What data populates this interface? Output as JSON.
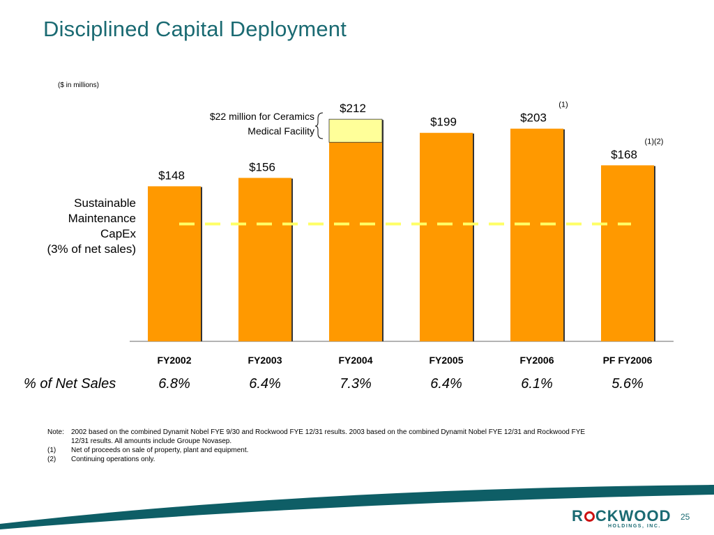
{
  "title": "Disciplined Capital Deployment",
  "units_note": "($ in millions)",
  "side_label": [
    "Sustainable",
    "Maintenance",
    "CapEx",
    "(3% of net sales)"
  ],
  "annotation": {
    "text_line1": "$22 million for Ceramics",
    "text_line2": "Medical Facility",
    "value": 22,
    "category": "FY2004"
  },
  "chart_data": {
    "type": "bar",
    "categories": [
      "FY2002",
      "FY2003",
      "FY2004",
      "FY2005",
      "FY2006",
      "PF FY2006"
    ],
    "values": [
      148,
      156,
      212,
      199,
      203,
      168
    ],
    "value_labels": [
      "$148",
      "$156",
      "$212",
      "$199",
      "$203",
      "$168"
    ],
    "footnote_marks": [
      "",
      "",
      "",
      "",
      "(1)",
      "(1)(2)"
    ],
    "stacked_segment": {
      "category": "FY2004",
      "base": 190,
      "top": 212,
      "color": "#ffff99"
    },
    "reference_line": {
      "label": "Sustainable Maintenance CapEx",
      "value": 112,
      "style": "dashed",
      "color": "#ffff66"
    },
    "ylim": [
      0,
      230
    ],
    "bar_color": "#ff9900",
    "grid": false
  },
  "row_label": "% of Net Sales",
  "pct_of_net_sales": [
    "6.8%",
    "6.4%",
    "7.3%",
    "6.4%",
    "6.1%",
    "5.6%"
  ],
  "notes": [
    {
      "key": "Note:",
      "text": "2002 based on the combined Dynamit Nobel FYE 9/30 and Rockwood FYE 12/31 results. 2003 based on the combined Dynamit Nobel FYE 12/31 and Rockwood FYE"
    },
    {
      "key": "",
      "text": "12/31 results. All amounts include Groupe Novasep."
    },
    {
      "key": "(1)",
      "text": "Net of proceeds on sale of property, plant and equipment."
    },
    {
      "key": "(2)",
      "text": "Continuing operations only."
    }
  ],
  "logo": {
    "name": "ROCKWOOD",
    "sub": "HOLDINGS, INC."
  },
  "page_number": "25",
  "colors": {
    "title": "#1a6a72",
    "wave": "#0e5e66",
    "bar": "#ff9900",
    "highlight": "#ffff99"
  }
}
